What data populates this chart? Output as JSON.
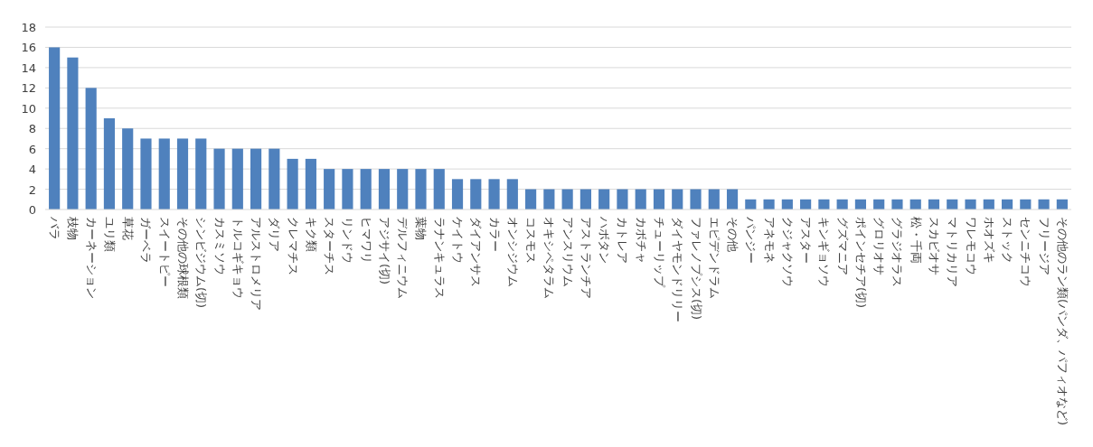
{
  "chart_data": {
    "type": "bar",
    "categories": [
      "バラ",
      "枝物",
      "カーネーション",
      "ユリ類",
      "草花",
      "ガーベラ",
      "スイートピー",
      "その他の球根類",
      "シンビジウム(切)",
      "カスミソウ",
      "トルコギキョウ",
      "アルストロメリア",
      "ダリア",
      "クレマチス",
      "キク類",
      "スターチス",
      "リンドウ",
      "ヒマワリ",
      "アジサイ(切)",
      "デルフィニウム",
      "葉物",
      "ラナンキュラス",
      "ケイトウ",
      "ダイアンサス",
      "カラー",
      "オンシジウム",
      "コスモス",
      "オキシペタラム",
      "アンスリウム",
      "アストランチア",
      "ハボタン",
      "カトレア",
      "カボチャ",
      "チューリップ",
      "ダイヤモンドリリー",
      "ファレノプシス(切)",
      "エピデンドラム",
      "その他",
      "パンジー",
      "アネモネ",
      "クジャクソウ",
      "アスター",
      "キンギョソウ",
      "グズマニア",
      "ポインセチア(切)",
      "グロリオサ",
      "グラジオラス",
      "松・千両",
      "スカビオサ",
      "マトリカリア",
      "ワレモコウ",
      "ホオズキ",
      "ストック",
      "センニチコウ",
      "フリージア",
      "その他のラン類(パンダ、パフィオなど)"
    ],
    "values": [
      16,
      15,
      12,
      9,
      8,
      7,
      7,
      7,
      7,
      6,
      6,
      6,
      6,
      5,
      5,
      4,
      4,
      4,
      4,
      4,
      4,
      4,
      3,
      3,
      3,
      3,
      2,
      2,
      2,
      2,
      2,
      2,
      2,
      2,
      2,
      2,
      2,
      2,
      1,
      1,
      1,
      1,
      1,
      1,
      1,
      1,
      1,
      1,
      1,
      1,
      1,
      1,
      1,
      1,
      1,
      1
    ],
    "color": "#4f81bd",
    "ylim": [
      0,
      18
    ],
    "yticks": [
      0,
      2,
      4,
      6,
      8,
      10,
      12,
      14,
      16,
      18
    ],
    "grid": "y"
  }
}
